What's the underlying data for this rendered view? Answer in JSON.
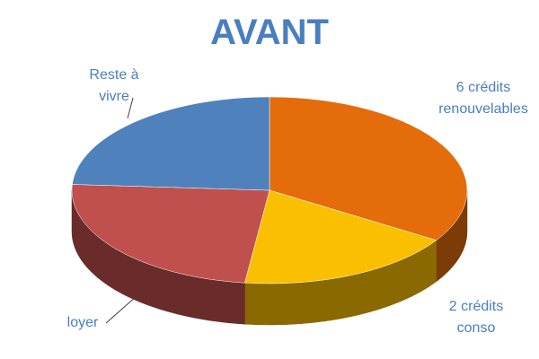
{
  "chart_data": {
    "type": "pie",
    "title": "AVANT",
    "categories": [
      "6 crédits renouvelables",
      "2 crédits conso",
      "loyer",
      "Reste à vivre"
    ],
    "values": [
      34,
      18,
      24,
      24
    ],
    "colors": [
      "#e46c0a",
      "#fac000",
      "#c0504d",
      "#4f81bd"
    ]
  }
}
